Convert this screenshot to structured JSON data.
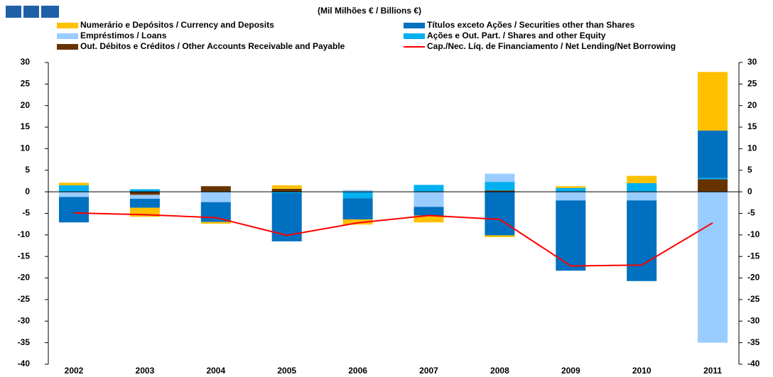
{
  "chart_data": {
    "type": "bar",
    "title": "(Mil Milhões € / Billions €)",
    "categories": [
      "2002",
      "2003",
      "2004",
      "2005",
      "2006",
      "2007",
      "2008",
      "2009",
      "2010",
      "2011"
    ],
    "stacked": true,
    "series": [
      {
        "name": "Numerário e Depósitos / Currency and Deposits",
        "color": "#FFC000",
        "type": "bar",
        "values": [
          0.6,
          -2.1,
          -0.4,
          0.8,
          -1.2,
          -1.6,
          -0.4,
          0.4,
          1.7,
          13.6
        ]
      },
      {
        "name": "Títulos exceto Ações / Securities other than Shares",
        "color": "#0070C0",
        "type": "bar",
        "values": [
          -5.9,
          -2.1,
          -4.6,
          -11.2,
          -4.9,
          -2.0,
          -10.1,
          -16.3,
          -18.7,
          11.0
        ]
      },
      {
        "name": "Empréstimos / Loans",
        "color": "#99CCFF",
        "type": "bar",
        "values": [
          -1.2,
          -0.9,
          -2.4,
          0,
          0.4,
          -3.5,
          1.9,
          -2.0,
          -2.0,
          -35.0
        ]
      },
      {
        "name": "Ações e Out. Part. / Shares and other Equity",
        "color": "#00B0F0",
        "type": "bar",
        "values": [
          1.5,
          0.6,
          0,
          -0.3,
          -1.5,
          1.6,
          2.0,
          0.9,
          2.0,
          0.3
        ]
      },
      {
        "name": "Out. Débitos e Créditos / Other Accounts Receivable and Payable",
        "color": "#663300",
        "type": "bar",
        "values": [
          0,
          -0.7,
          1.3,
          0.7,
          0,
          0,
          0.3,
          0,
          0,
          2.9
        ]
      },
      {
        "name": "Cap./Nec. Líq. de Financiamento / Net Lending/Net Borrowing",
        "color": "#FF0000",
        "type": "line",
        "values": [
          -4.9,
          -5.3,
          -6.0,
          -10.1,
          -7.2,
          -5.5,
          -6.4,
          -17.2,
          -17.0,
          -7.2
        ]
      }
    ],
    "ylim": [
      -40,
      30
    ],
    "yticks": [
      -40,
      -35,
      -30,
      -25,
      -20,
      -15,
      -10,
      -5,
      0,
      5,
      10,
      15,
      20,
      25,
      30
    ],
    "y2lim": [
      -40,
      30
    ],
    "y2ticks": [
      -40,
      -35,
      -30,
      -25,
      -20,
      -15,
      -10,
      -5,
      0,
      5,
      10,
      15,
      20,
      25,
      30
    ],
    "legend": "top"
  }
}
